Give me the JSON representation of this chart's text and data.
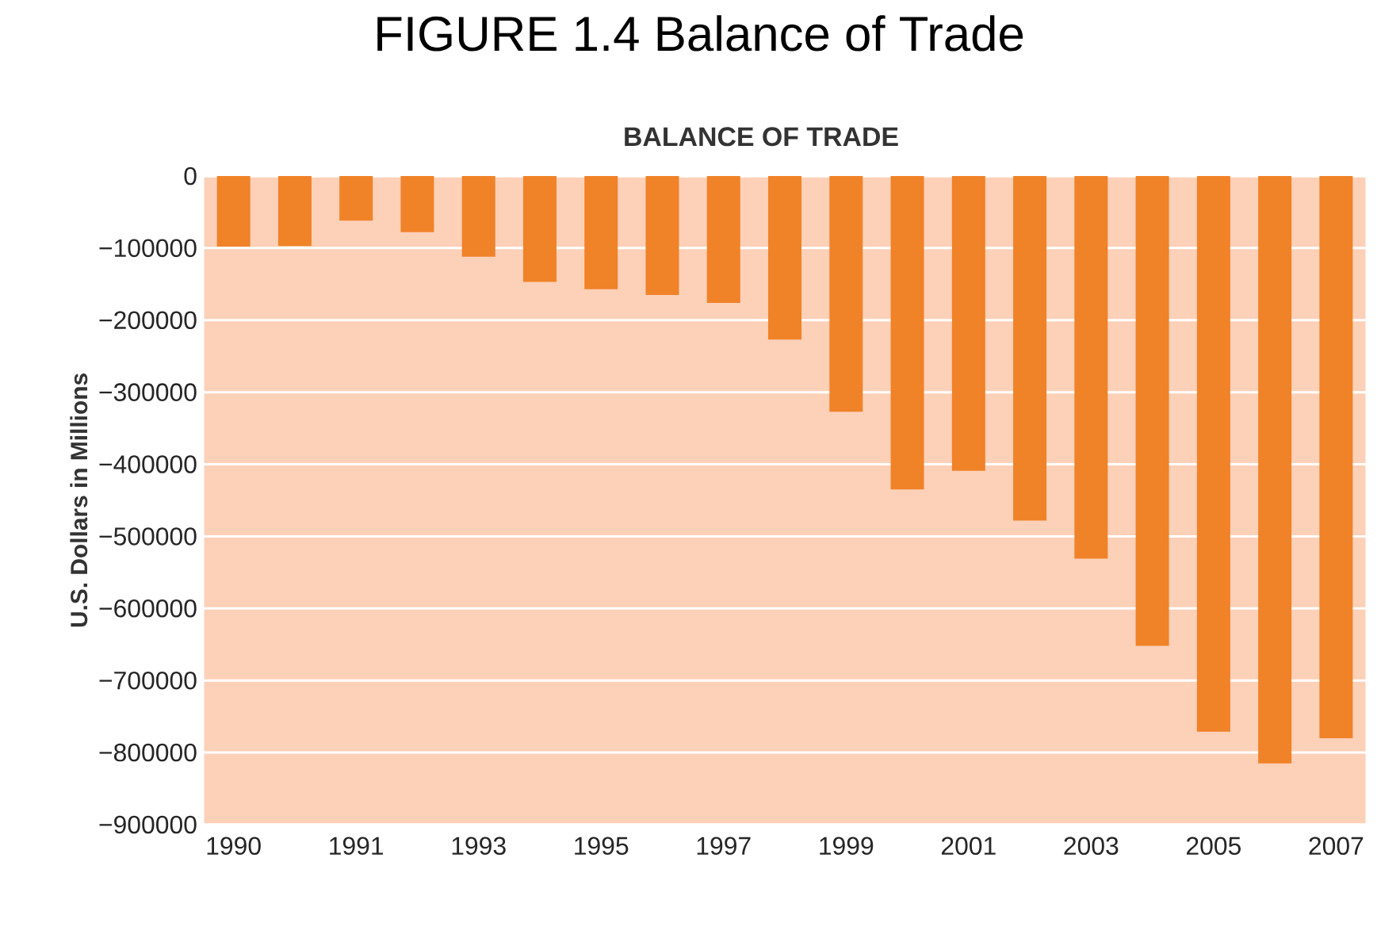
{
  "chart_data": {
    "type": "bar",
    "title": "FIGURE 1.4  Balance of Trade",
    "subtitle": "BALANCE OF TRADE",
    "ylabel": "U.S. Dollars in Millions",
    "categories": [
      "1990",
      null,
      "1991",
      null,
      "1993",
      null,
      "1995",
      null,
      "1997",
      null,
      "1999",
      null,
      "2001",
      null,
      "2003",
      null,
      "2005",
      null,
      "2007"
    ],
    "values": [
      -98000,
      -97000,
      -62000,
      -78000,
      -112000,
      -147000,
      -157000,
      -165000,
      -176000,
      -227000,
      -327000,
      -435000,
      -409000,
      -478000,
      -531000,
      -652000,
      -771000,
      -815000,
      -780000
    ],
    "color": "#f08228",
    "ylim": [
      -900000,
      0
    ],
    "yticks": [
      0,
      {
        "value": -100000,
        "label": "−100000"
      },
      {
        "value": -200000,
        "label": "−200000"
      },
      {
        "value": -300000,
        "label": "−300000"
      },
      {
        "value": -400000,
        "label": "−400000"
      },
      {
        "value": -500000,
        "label": "−500000"
      },
      {
        "value": -600000,
        "label": "−600000"
      },
      {
        "value": -700000,
        "label": "−700000"
      },
      {
        "value": -800000,
        "label": "−800000"
      },
      {
        "value": -900000,
        "label": "−900000"
      }
    ],
    "grid": "y"
  }
}
